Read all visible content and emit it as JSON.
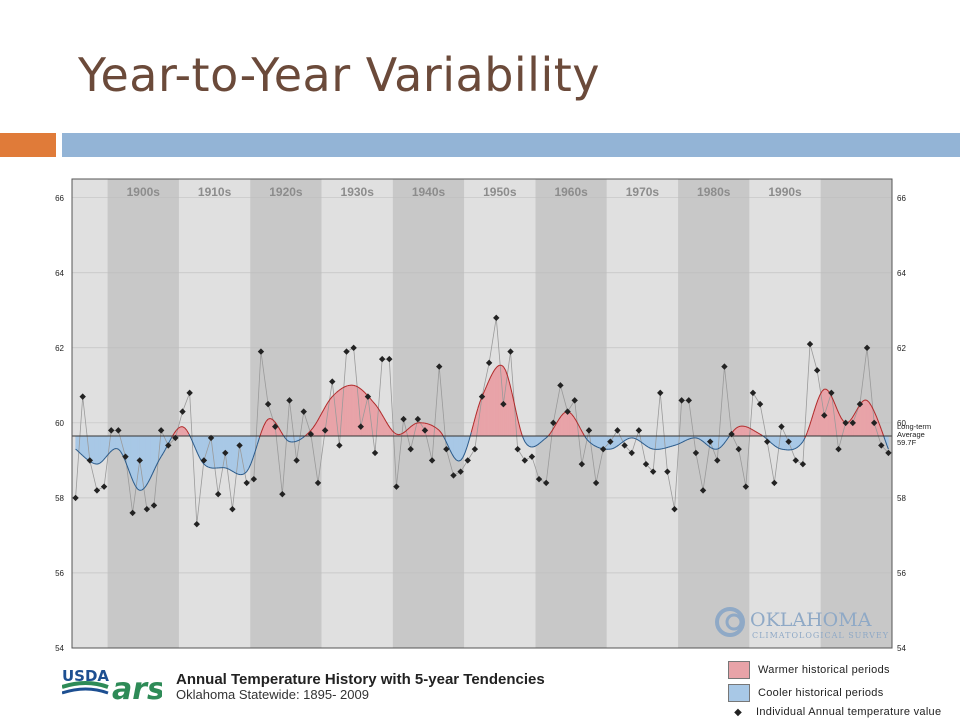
{
  "slide": {
    "title": "Year-to-Year Variability",
    "colors": {
      "title": "#6b4a3a",
      "accent_left": "#e07b39",
      "accent_bar": "#93b4d6"
    }
  },
  "chart_data": {
    "type": "line",
    "title": "Annual Temperature History with 5-year Tendencies",
    "subtitle": "Oklahoma Statewide: 1895- 2009",
    "decade_labels": [
      "1900s",
      "1910s",
      "1920s",
      "1930s",
      "1940s",
      "1950s",
      "1960s",
      "1970s",
      "1980s",
      "1990s"
    ],
    "ylim": [
      54,
      66.5
    ],
    "y_ticks": [
      "54",
      "56",
      "58",
      "60",
      "62",
      "64",
      "66"
    ],
    "xlim": [
      1894.5,
      2009.5
    ],
    "baseline": 59.65,
    "baseline_label": [
      "Long-term",
      "Average",
      "59.7F"
    ],
    "legend": {
      "warmer": "Warmer historical periods",
      "cooler": "Cooler historical periods",
      "points": "Individual Annual temperature value"
    },
    "colors": {
      "warm": "#e8a3a8",
      "warm_line": "#b02a2a",
      "cool": "#a8c8e6",
      "cool_line": "#2a5a8a",
      "points": "#222222"
    },
    "annual": {
      "years": [
        1895,
        1896,
        1897,
        1898,
        1899,
        1900,
        1901,
        1902,
        1903,
        1904,
        1905,
        1906,
        1907,
        1908,
        1909,
        1910,
        1911,
        1912,
        1913,
        1914,
        1915,
        1916,
        1917,
        1918,
        1919,
        1920,
        1921,
        1922,
        1923,
        1924,
        1925,
        1926,
        1927,
        1928,
        1929,
        1930,
        1931,
        1932,
        1933,
        1934,
        1935,
        1936,
        1937,
        1938,
        1939,
        1940,
        1941,
        1942,
        1943,
        1944,
        1945,
        1946,
        1947,
        1948,
        1949,
        1950,
        1951,
        1952,
        1953,
        1954,
        1955,
        1956,
        1957,
        1958,
        1959,
        1960,
        1961,
        1962,
        1963,
        1964,
        1965,
        1966,
        1967,
        1968,
        1969,
        1970,
        1971,
        1972,
        1973,
        1974,
        1975,
        1976,
        1977,
        1978,
        1979,
        1980,
        1981,
        1982,
        1983,
        1984,
        1985,
        1986,
        1987,
        1988,
        1989,
        1990,
        1991,
        1992,
        1993,
        1994,
        1995,
        1996,
        1997,
        1998,
        1999,
        2000,
        2001,
        2002,
        2003,
        2004,
        2005,
        2006,
        2007,
        2008,
        2009
      ],
      "values": [
        58.0,
        60.7,
        59.0,
        58.2,
        58.3,
        59.8,
        59.8,
        59.1,
        57.6,
        59.0,
        57.7,
        57.8,
        59.8,
        59.4,
        59.6,
        60.3,
        60.8,
        57.3,
        59.0,
        59.6,
        58.1,
        59.2,
        57.7,
        59.4,
        58.4,
        58.5,
        61.9,
        60.5,
        59.9,
        58.1,
        60.6,
        59.0,
        60.3,
        59.7,
        58.4,
        59.8,
        61.1,
        59.4,
        61.9,
        62.0,
        59.9,
        60.7,
        59.2,
        61.7,
        61.7,
        58.3,
        60.1,
        59.3,
        60.1,
        59.8,
        59.0,
        61.5,
        59.3,
        58.6,
        58.7,
        59.0,
        59.3,
        60.7,
        61.6,
        62.8,
        60.5,
        61.9,
        59.3,
        59.0,
        59.1,
        58.5,
        58.4,
        60.0,
        61.0,
        60.3,
        60.6,
        58.9,
        59.8,
        58.4,
        59.3,
        59.5,
        59.8,
        59.4,
        59.2,
        59.8,
        58.9,
        58.7,
        60.8,
        58.7,
        57.7,
        60.6,
        60.6,
        59.2,
        58.2,
        59.5,
        59.0,
        61.5,
        59.7,
        59.3,
        58.3,
        60.8,
        60.5,
        59.5,
        58.4,
        59.9,
        59.5,
        59.0,
        58.9,
        62.1,
        61.4,
        60.2,
        60.8,
        59.3,
        60.0,
        60.0,
        60.5,
        62.0,
        60.0,
        59.4,
        59.2
      ]
    },
    "tendency": {
      "years": [
        1895,
        1898,
        1901,
        1904,
        1907,
        1910,
        1913,
        1916,
        1919,
        1922,
        1925,
        1928,
        1931,
        1934,
        1937,
        1940,
        1943,
        1946,
        1949,
        1952,
        1955,
        1958,
        1961,
        1964,
        1967,
        1970,
        1973,
        1976,
        1979,
        1982,
        1985,
        1988,
        1991,
        1994,
        1997,
        2000,
        2003,
        2006,
        2009
      ],
      "values": [
        59.3,
        58.9,
        59.3,
        58.2,
        59.1,
        59.9,
        58.9,
        58.8,
        58.7,
        60.1,
        59.5,
        59.8,
        60.7,
        61.0,
        60.5,
        59.7,
        60.0,
        59.8,
        59.0,
        60.7,
        61.5,
        59.5,
        59.6,
        60.3,
        59.5,
        59.3,
        59.6,
        59.3,
        59.4,
        59.6,
        59.3,
        59.9,
        59.7,
        59.3,
        59.5,
        60.9,
        60.0,
        60.6,
        59.3
      ]
    }
  },
  "logos": {
    "usda": "USDA",
    "ars": "ars",
    "ocs_line1": "OKLAHOMA",
    "ocs_line2": "CLIMATOLOGICAL SURVEY"
  }
}
